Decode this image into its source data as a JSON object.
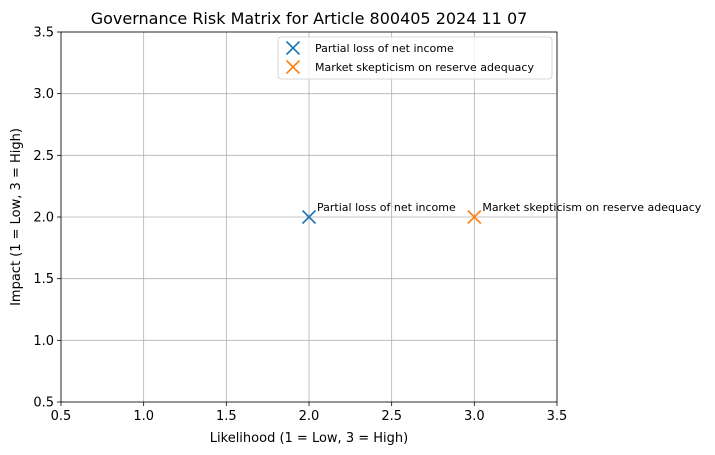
{
  "chart_data": {
    "type": "scatter",
    "title": "Governance Risk Matrix for Article 800405 2024 11 07",
    "xlabel": "Likelihood (1 = Low, 3 = High)",
    "ylabel": "Impact (1 = Low, 3 = High)",
    "xlim": [
      0.5,
      3.5
    ],
    "ylim": [
      0.5,
      3.5
    ],
    "xticks": [
      "0.5",
      "1.0",
      "1.5",
      "2.0",
      "2.5",
      "3.0",
      "3.5"
    ],
    "yticks": [
      "0.5",
      "1.0",
      "1.5",
      "2.0",
      "2.5",
      "3.0",
      "3.5"
    ],
    "grid": true,
    "legend_position": "top-right",
    "marker": "x",
    "series": [
      {
        "name": "Partial loss of net income",
        "color": "#1f77b4",
        "points": [
          {
            "x": 2.0,
            "y": 2.0,
            "label": "Partial loss of net income"
          }
        ]
      },
      {
        "name": "Market skepticism on reserve adequacy",
        "color": "#ff7f0e",
        "points": [
          {
            "x": 3.0,
            "y": 2.0,
            "label": "Market skepticism on reserve adequacy"
          }
        ]
      }
    ]
  }
}
